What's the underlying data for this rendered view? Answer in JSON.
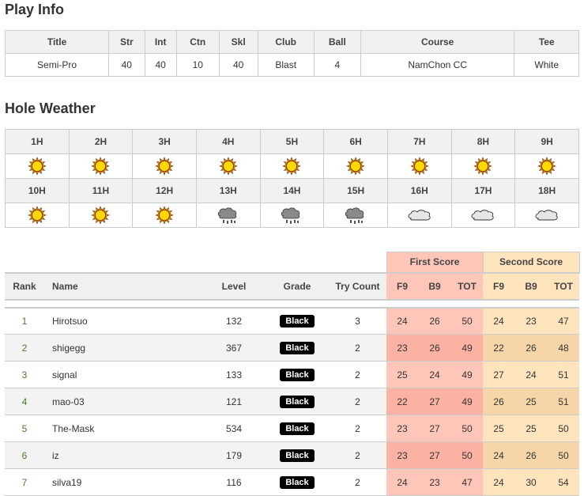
{
  "play_info": {
    "title": "Play Info",
    "headers": [
      "Title",
      "Str",
      "Int",
      "Ctn",
      "Skl",
      "Club",
      "Ball",
      "Course",
      "Tee"
    ],
    "values": [
      "Semi-Pro",
      "40",
      "40",
      "10",
      "40",
      "Blast",
      "4",
      "NamChon CC",
      "White"
    ]
  },
  "hole_weather": {
    "title": "Hole Weather",
    "holes": [
      {
        "label": "1H",
        "weather": "sunny"
      },
      {
        "label": "2H",
        "weather": "sunny"
      },
      {
        "label": "3H",
        "weather": "sunny"
      },
      {
        "label": "4H",
        "weather": "sunny"
      },
      {
        "label": "5H",
        "weather": "sunny"
      },
      {
        "label": "6H",
        "weather": "sunny"
      },
      {
        "label": "7H",
        "weather": "sunny"
      },
      {
        "label": "8H",
        "weather": "sunny"
      },
      {
        "label": "9H",
        "weather": "sunny"
      },
      {
        "label": "10H",
        "weather": "sunny"
      },
      {
        "label": "11H",
        "weather": "sunny"
      },
      {
        "label": "12H",
        "weather": "sunny"
      },
      {
        "label": "13H",
        "weather": "rain"
      },
      {
        "label": "14H",
        "weather": "rain"
      },
      {
        "label": "15H",
        "weather": "rain"
      },
      {
        "label": "16H",
        "weather": "cloudy"
      },
      {
        "label": "17H",
        "weather": "cloudy"
      },
      {
        "label": "18H",
        "weather": "cloudy"
      }
    ]
  },
  "ranking": {
    "group_headers": {
      "first": "First Score",
      "second": "Second Score"
    },
    "headers": [
      "Rank",
      "Name",
      "Level",
      "Grade",
      "Try Count",
      "F9",
      "B9",
      "TOT",
      "F9",
      "B9",
      "TOT"
    ],
    "colors": {
      "first": "#fdc6b9",
      "second": "#fde4bd",
      "badge": "#000000",
      "rank": "#4a7a2a"
    },
    "rows": [
      {
        "rank": "1",
        "name": "Hirotsuo",
        "level": "132",
        "grade": "Black",
        "try": "3",
        "f": [
          "24",
          "26",
          "50"
        ],
        "s": [
          "24",
          "23",
          "47"
        ]
      },
      {
        "rank": "2",
        "name": "shigegg",
        "level": "367",
        "grade": "Black",
        "try": "2",
        "f": [
          "23",
          "26",
          "49"
        ],
        "s": [
          "22",
          "26",
          "48"
        ]
      },
      {
        "rank": "3",
        "name": "signal",
        "level": "133",
        "grade": "Black",
        "try": "2",
        "f": [
          "25",
          "24",
          "49"
        ],
        "s": [
          "27",
          "24",
          "51"
        ]
      },
      {
        "rank": "4",
        "name": "mao-03",
        "level": "121",
        "grade": "Black",
        "try": "2",
        "f": [
          "22",
          "27",
          "49"
        ],
        "s": [
          "26",
          "25",
          "51"
        ]
      },
      {
        "rank": "5",
        "name": "The-Mask",
        "level": "534",
        "grade": "Black",
        "try": "2",
        "f": [
          "23",
          "27",
          "50"
        ],
        "s": [
          "25",
          "25",
          "50"
        ]
      },
      {
        "rank": "6",
        "name": "iz",
        "level": "179",
        "grade": "Black",
        "try": "2",
        "f": [
          "23",
          "27",
          "50"
        ],
        "s": [
          "24",
          "26",
          "50"
        ]
      },
      {
        "rank": "7",
        "name": "silva19",
        "level": "116",
        "grade": "Black",
        "try": "2",
        "f": [
          "24",
          "23",
          "47"
        ],
        "s": [
          "24",
          "30",
          "54"
        ]
      }
    ]
  }
}
